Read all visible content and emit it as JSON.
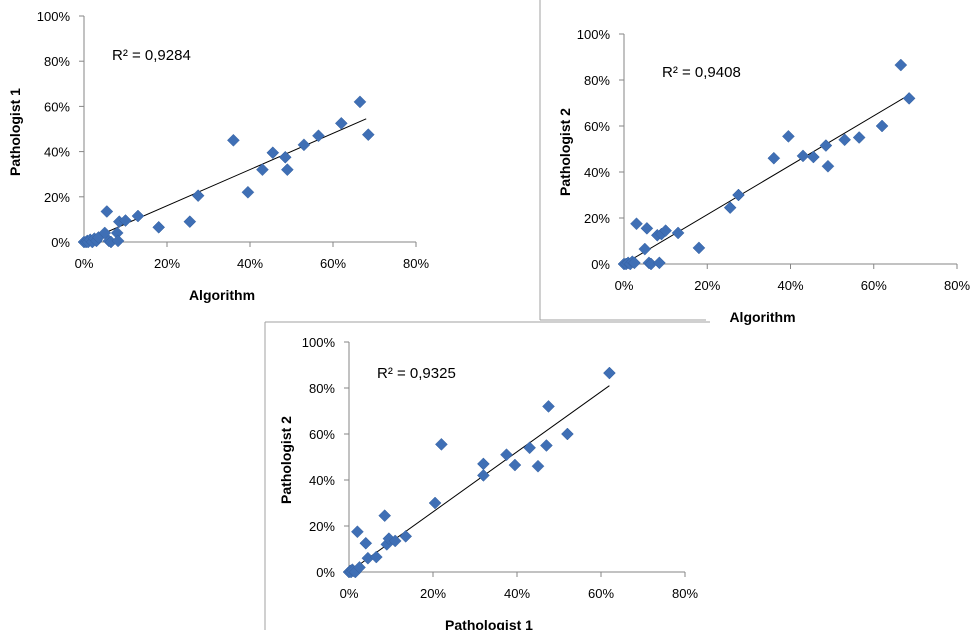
{
  "chart_data": [
    {
      "type": "scatter",
      "xlabel": "Algorithm",
      "ylabel": "Pathologist 1",
      "r_squared_label": "R² = 0,9284",
      "xlim": [
        0,
        0.8
      ],
      "ylim": [
        0,
        1.0
      ],
      "x_ticks": [
        "0%",
        "20%",
        "40%",
        "60%",
        "80%"
      ],
      "y_ticks": [
        "0%",
        "20%",
        "40%",
        "60%",
        "80%",
        "100%"
      ],
      "marker_color": "#3f6fb5",
      "trendline": {
        "x": [
          0,
          0.68
        ],
        "y": [
          0,
          0.545
        ]
      },
      "points": [
        {
          "x": 0.0,
          "y": 0.0
        },
        {
          "x": 0.005,
          "y": 0.0
        },
        {
          "x": 0.008,
          "y": 0.005
        },
        {
          "x": 0.01,
          "y": 0.0
        },
        {
          "x": 0.015,
          "y": 0.01
        },
        {
          "x": 0.02,
          "y": 0.0
        },
        {
          "x": 0.025,
          "y": 0.015
        },
        {
          "x": 0.03,
          "y": 0.005
        },
        {
          "x": 0.035,
          "y": 0.02
        },
        {
          "x": 0.05,
          "y": 0.04
        },
        {
          "x": 0.055,
          "y": 0.135
        },
        {
          "x": 0.06,
          "y": 0.005
        },
        {
          "x": 0.065,
          "y": 0.0
        },
        {
          "x": 0.08,
          "y": 0.04
        },
        {
          "x": 0.082,
          "y": 0.005
        },
        {
          "x": 0.085,
          "y": 0.09
        },
        {
          "x": 0.1,
          "y": 0.095
        },
        {
          "x": 0.13,
          "y": 0.115
        },
        {
          "x": 0.18,
          "y": 0.065
        },
        {
          "x": 0.255,
          "y": 0.09
        },
        {
          "x": 0.275,
          "y": 0.205
        },
        {
          "x": 0.36,
          "y": 0.45
        },
        {
          "x": 0.395,
          "y": 0.22
        },
        {
          "x": 0.43,
          "y": 0.32
        },
        {
          "x": 0.455,
          "y": 0.395
        },
        {
          "x": 0.485,
          "y": 0.375
        },
        {
          "x": 0.49,
          "y": 0.32
        },
        {
          "x": 0.53,
          "y": 0.43
        },
        {
          "x": 0.565,
          "y": 0.47
        },
        {
          "x": 0.62,
          "y": 0.525
        },
        {
          "x": 0.665,
          "y": 0.62
        },
        {
          "x": 0.685,
          "y": 0.475
        }
      ]
    },
    {
      "type": "scatter",
      "xlabel": "Algorithm",
      "ylabel": "Pathologist 2",
      "r_squared_label": "R² = 0,9408",
      "xlim": [
        0,
        0.8
      ],
      "ylim": [
        0,
        1.0
      ],
      "x_ticks": [
        "0%",
        "20%",
        "40%",
        "60%",
        "80%"
      ],
      "y_ticks": [
        "0%",
        "20%",
        "40%",
        "60%",
        "80%",
        "100%"
      ],
      "marker_color": "#3f6fb5",
      "trendline": {
        "x": [
          0,
          0.68
        ],
        "y": [
          0,
          0.73
        ]
      },
      "points": [
        {
          "x": 0.0,
          "y": 0.0
        },
        {
          "x": 0.005,
          "y": 0.0
        },
        {
          "x": 0.01,
          "y": 0.005
        },
        {
          "x": 0.015,
          "y": 0.0
        },
        {
          "x": 0.02,
          "y": 0.01
        },
        {
          "x": 0.025,
          "y": 0.005
        },
        {
          "x": 0.03,
          "y": 0.175
        },
        {
          "x": 0.05,
          "y": 0.065
        },
        {
          "x": 0.055,
          "y": 0.155
        },
        {
          "x": 0.06,
          "y": 0.005
        },
        {
          "x": 0.065,
          "y": 0.0
        },
        {
          "x": 0.08,
          "y": 0.125
        },
        {
          "x": 0.085,
          "y": 0.005
        },
        {
          "x": 0.09,
          "y": 0.13
        },
        {
          "x": 0.1,
          "y": 0.145
        },
        {
          "x": 0.13,
          "y": 0.135
        },
        {
          "x": 0.18,
          "y": 0.07
        },
        {
          "x": 0.255,
          "y": 0.245
        },
        {
          "x": 0.275,
          "y": 0.3
        },
        {
          "x": 0.36,
          "y": 0.46
        },
        {
          "x": 0.395,
          "y": 0.555
        },
        {
          "x": 0.43,
          "y": 0.47
        },
        {
          "x": 0.455,
          "y": 0.465
        },
        {
          "x": 0.485,
          "y": 0.515
        },
        {
          "x": 0.49,
          "y": 0.425
        },
        {
          "x": 0.53,
          "y": 0.54
        },
        {
          "x": 0.565,
          "y": 0.55
        },
        {
          "x": 0.62,
          "y": 0.6
        },
        {
          "x": 0.665,
          "y": 0.865
        },
        {
          "x": 0.685,
          "y": 0.72
        }
      ]
    },
    {
      "type": "scatter",
      "xlabel": "Pathologist 1",
      "ylabel": "Pathologist 2",
      "r_squared_label": "R² = 0,9325",
      "xlim": [
        0,
        0.8
      ],
      "ylim": [
        0,
        1.0
      ],
      "x_ticks": [
        "0%",
        "20%",
        "40%",
        "60%",
        "80%"
      ],
      "y_ticks": [
        "0%",
        "20%",
        "40%",
        "60%",
        "80%",
        "100%"
      ],
      "marker_color": "#3f6fb5",
      "trendline": {
        "x": [
          0,
          0.62
        ],
        "y": [
          0,
          0.81
        ]
      },
      "points": [
        {
          "x": 0.0,
          "y": 0.0
        },
        {
          "x": 0.003,
          "y": 0.005
        },
        {
          "x": 0.005,
          "y": 0.0
        },
        {
          "x": 0.008,
          "y": 0.01
        },
        {
          "x": 0.01,
          "y": 0.005
        },
        {
          "x": 0.015,
          "y": 0.0
        },
        {
          "x": 0.02,
          "y": 0.175
        },
        {
          "x": 0.025,
          "y": 0.02
        },
        {
          "x": 0.04,
          "y": 0.125
        },
        {
          "x": 0.045,
          "y": 0.06
        },
        {
          "x": 0.065,
          "y": 0.065
        },
        {
          "x": 0.085,
          "y": 0.245
        },
        {
          "x": 0.09,
          "y": 0.12
        },
        {
          "x": 0.095,
          "y": 0.145
        },
        {
          "x": 0.11,
          "y": 0.135
        },
        {
          "x": 0.135,
          "y": 0.155
        },
        {
          "x": 0.205,
          "y": 0.3
        },
        {
          "x": 0.22,
          "y": 0.555
        },
        {
          "x": 0.32,
          "y": 0.47
        },
        {
          "x": 0.32,
          "y": 0.42
        },
        {
          "x": 0.375,
          "y": 0.51
        },
        {
          "x": 0.395,
          "y": 0.465
        },
        {
          "x": 0.43,
          "y": 0.54
        },
        {
          "x": 0.45,
          "y": 0.46
        },
        {
          "x": 0.47,
          "y": 0.55
        },
        {
          "x": 0.475,
          "y": 0.72
        },
        {
          "x": 0.52,
          "y": 0.6
        },
        {
          "x": 0.62,
          "y": 0.865
        }
      ]
    }
  ]
}
